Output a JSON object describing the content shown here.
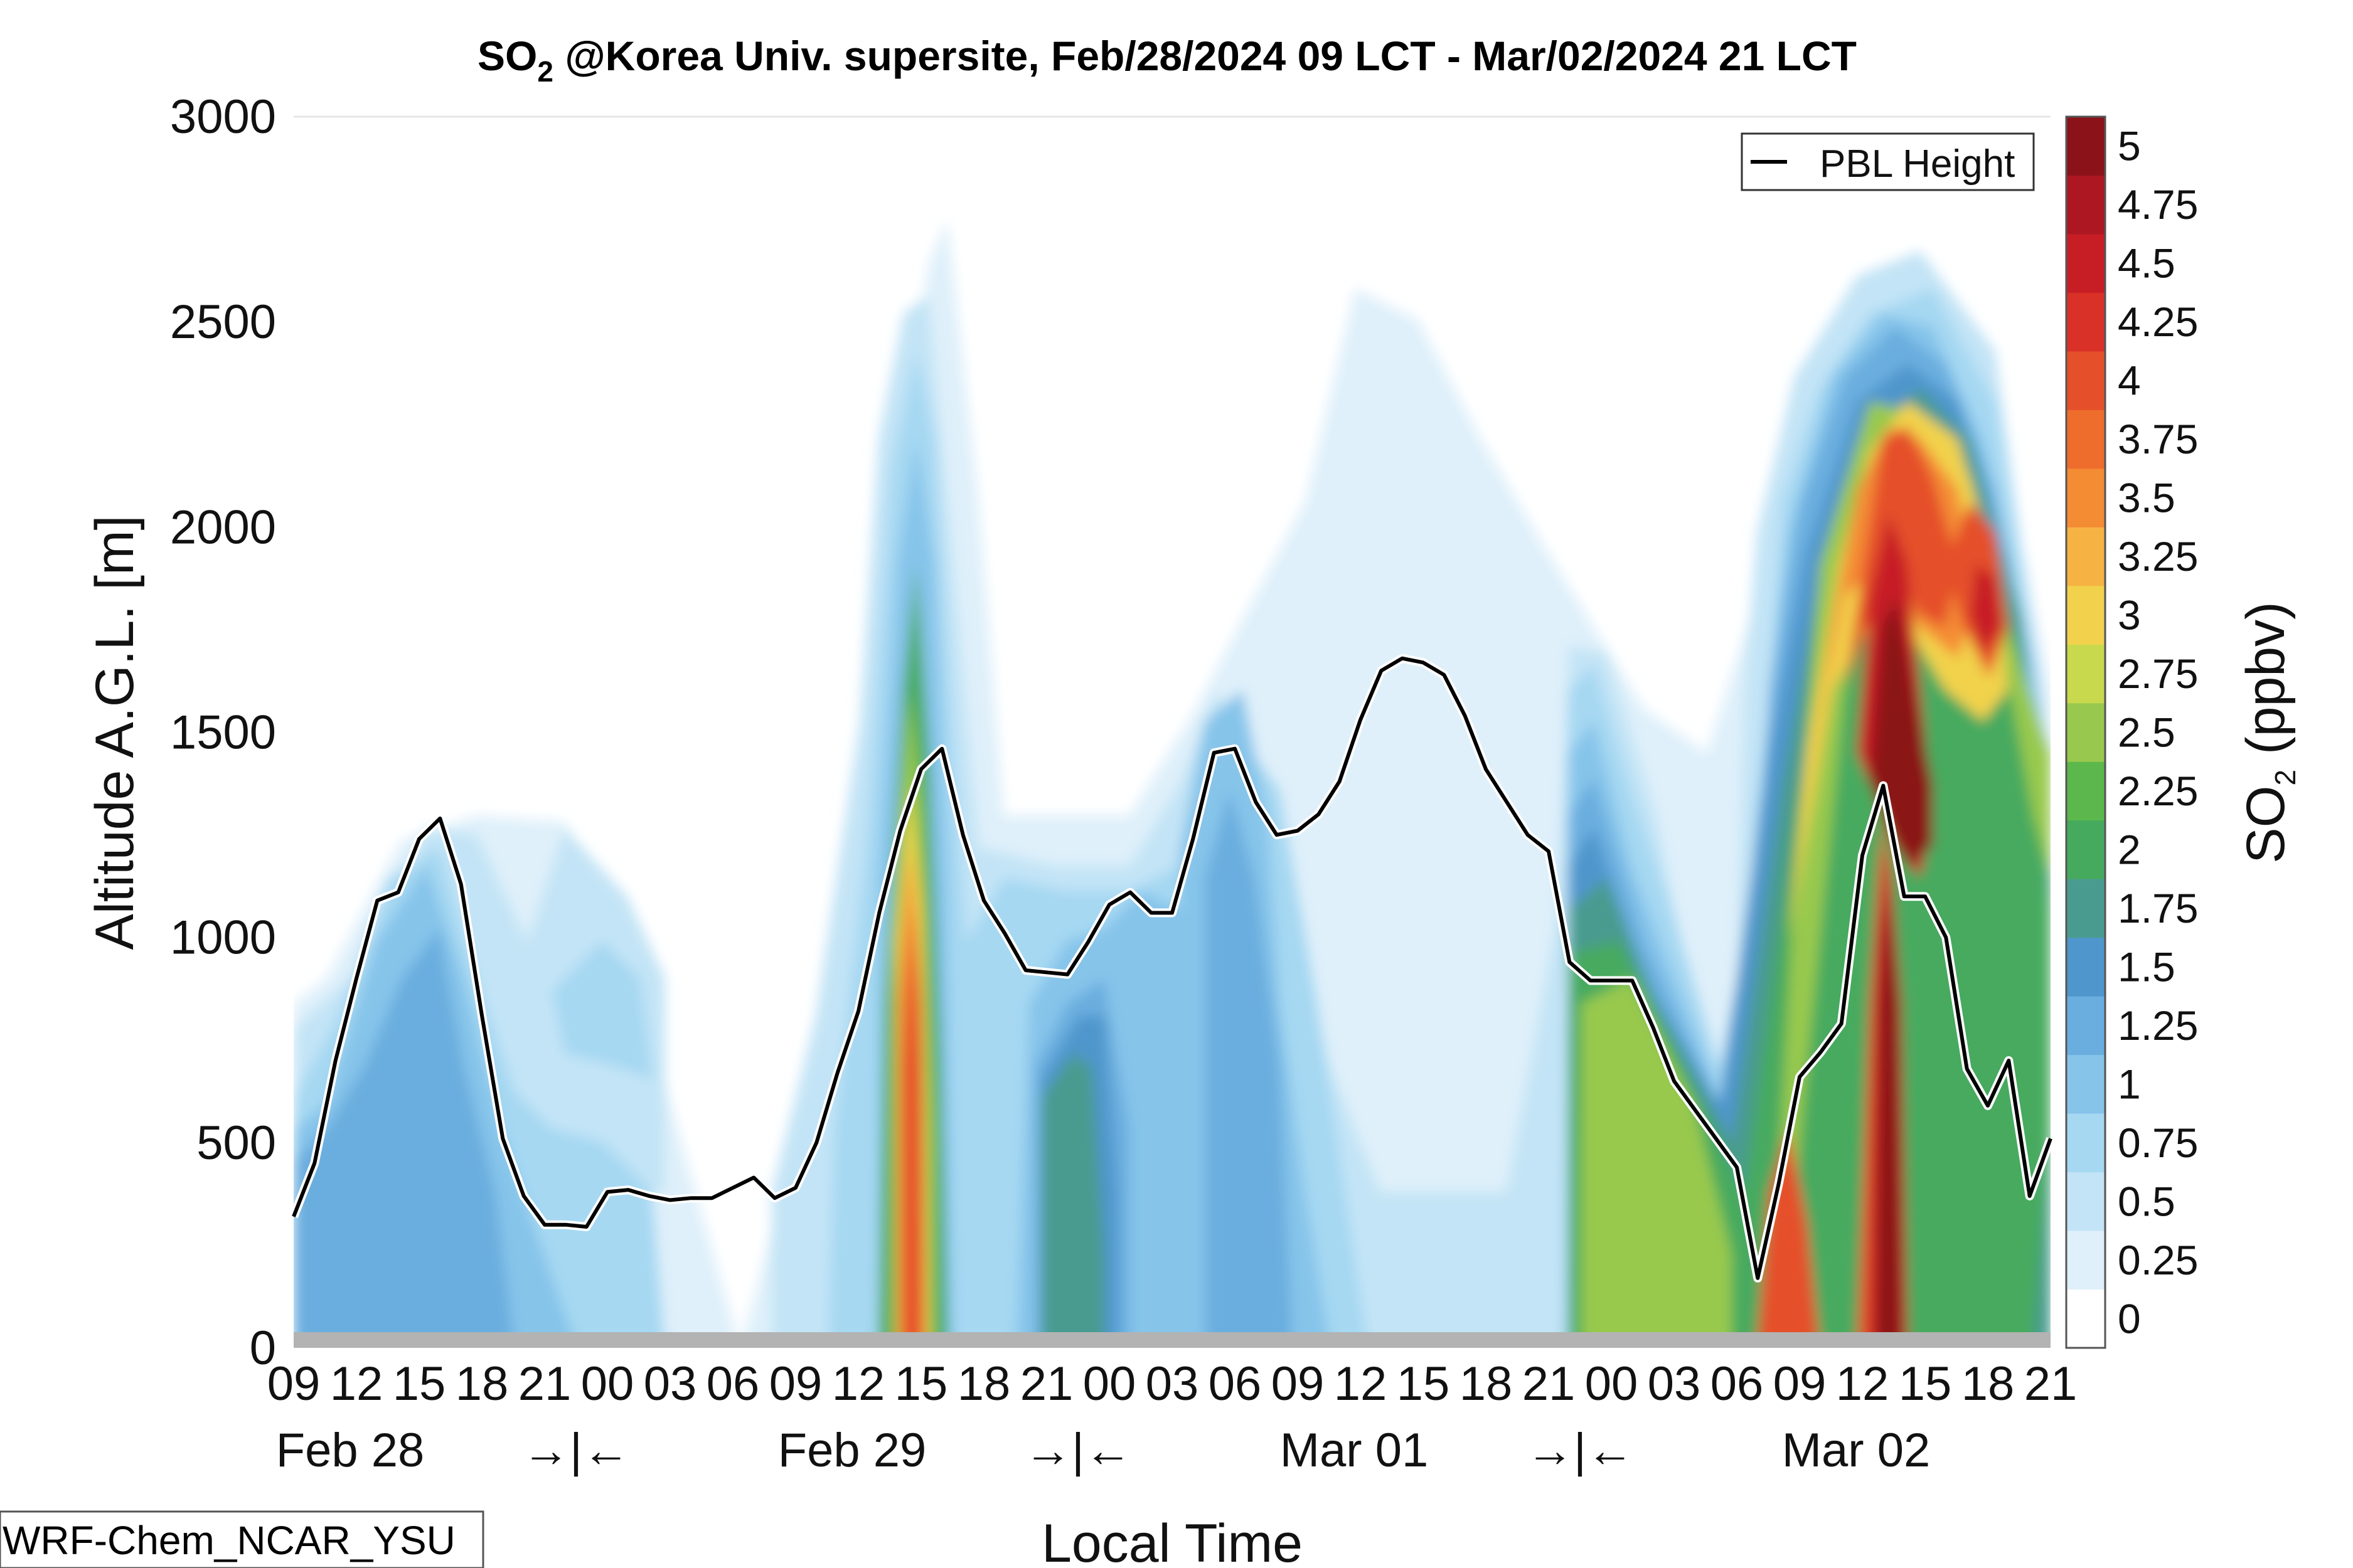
{
  "chart_data": {
    "type": "heatmap",
    "title_main": "SO",
    "title_sub": "2",
    "title_rest": " @Korea Univ. supersite, Feb/28/2024 09 LCT - Mar/02/2024 21 LCT",
    "xlabel": "Local Time",
    "ylabel": "Altitude A.G.L. [m]",
    "colorbar_label_main": "SO",
    "colorbar_label_sub": "2",
    "colorbar_label_rest": " (ppbv)",
    "model_label": "WRF-Chem_NCAR_YSU",
    "legend": {
      "label": "PBL Height",
      "position": "top-right"
    },
    "ylim": [
      0,
      3000
    ],
    "yticks": [
      "0",
      "500",
      "1000",
      "1500",
      "2000",
      "2500",
      "3000"
    ],
    "xticks": [
      "09",
      "12",
      "15",
      "18",
      "21",
      "00",
      "03",
      "06",
      "09",
      "12",
      "15",
      "18",
      "21",
      "00",
      "03",
      "06",
      "09",
      "12",
      "15",
      "18",
      "21",
      "00",
      "03",
      "06",
      "09",
      "12",
      "15",
      "18",
      "21"
    ],
    "date_labels": [
      "Feb 28",
      "→|←",
      "Feb 29",
      "→|←",
      "Mar 01",
      "→|←",
      "Mar 02"
    ],
    "colorbar_ticks": [
      "0",
      "0.25",
      "0.5",
      "0.75",
      "1",
      "1.25",
      "1.5",
      "1.75",
      "2",
      "2.25",
      "2.5",
      "2.75",
      "3",
      "3.25",
      "3.5",
      "3.75",
      "4",
      "4.25",
      "4.5",
      "4.75",
      "5"
    ],
    "colorbar_colors": [
      "#ffffff",
      "#dff0fa",
      "#c3e4f6",
      "#a6d8f2",
      "#86c4ea",
      "#6aaedf",
      "#4f96cc",
      "#4a9b8f",
      "#46aa5e",
      "#5cb84c",
      "#98c94e",
      "#c9d94d",
      "#f2d24c",
      "#f6b343",
      "#f48c34",
      "#ee6d2c",
      "#e5502a",
      "#d93128",
      "#c71e26",
      "#ac1722",
      "#8b1219"
    ],
    "x_range_hours": [
      0,
      84
    ],
    "pbl_height": {
      "name": "PBL Height",
      "x_hours": [
        0,
        1,
        2,
        3,
        4,
        5,
        6,
        7,
        8,
        9,
        10,
        11,
        12,
        13,
        14,
        15,
        16,
        17,
        18,
        19,
        20,
        21,
        22,
        23,
        24,
        25,
        26,
        27,
        28,
        29,
        30,
        31,
        32,
        33,
        34,
        35,
        36,
        37,
        38,
        39,
        40,
        41,
        42,
        43,
        44,
        45,
        46,
        47,
        48,
        49,
        50,
        51,
        52,
        53,
        54,
        55,
        56,
        57,
        58,
        59,
        60,
        61,
        62,
        63,
        64,
        65,
        66,
        67,
        68,
        69,
        70,
        71,
        72,
        73,
        74,
        75,
        76,
        77,
        78,
        79,
        80,
        81,
        82,
        83,
        84
      ],
      "values": [
        320,
        450,
        700,
        900,
        1090,
        1110,
        1240,
        1290,
        1130,
        810,
        510,
        370,
        300,
        300,
        295,
        380,
        385,
        370,
        360,
        365,
        365,
        390,
        415,
        365,
        390,
        500,
        670,
        820,
        1060,
        1260,
        1410,
        1460,
        1250,
        1090,
        1010,
        920,
        915,
        910,
        990,
        1080,
        1110,
        1060,
        1060,
        1240,
        1450,
        1460,
        1330,
        1250,
        1260,
        1300,
        1380,
        1530,
        1650,
        1680,
        1670,
        1640,
        1540,
        1410,
        1330,
        1250,
        1210,
        940,
        895,
        895,
        895,
        780,
        650,
        580,
        510,
        440,
        170,
        400,
        660,
        720,
        790,
        1200,
        1370,
        1100,
        1100,
        1000,
        680,
        590,
        700,
        370,
        510
      ]
    },
    "so2_field_description": "SO2 concentration contours; highest values (up to 5 ppbv) near Mar 02 09-15 LCT aloft and near surface, plume near Feb 29 12-15 LCT"
  }
}
